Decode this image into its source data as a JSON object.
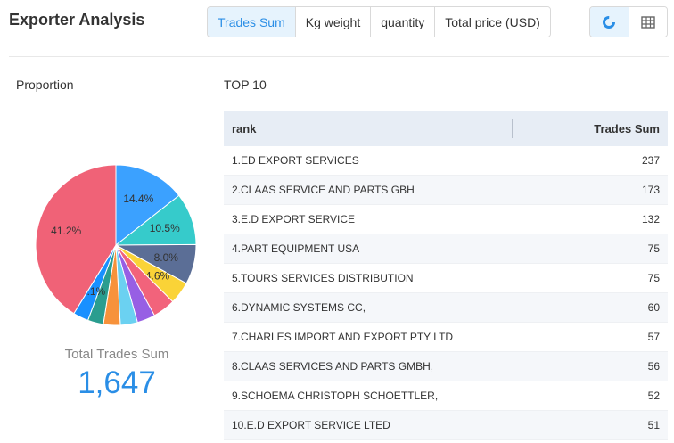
{
  "header": {
    "title": "Exporter Analysis",
    "metric_tabs": [
      "Trades Sum",
      "Kg weight",
      "quantity",
      "Total price (USD)"
    ],
    "active_tab": 0,
    "view_icons": [
      "pie-chart-icon",
      "table-icon"
    ]
  },
  "left": {
    "section_label": "Proportion",
    "total_label": "Total Trades Sum",
    "total_value": "1,647"
  },
  "right": {
    "section_label": "TOP 10",
    "columns": [
      "rank",
      "Trades Sum"
    ],
    "rows": [
      {
        "name": "1.ED EXPORT SERVICES",
        "value": "237"
      },
      {
        "name": "2.CLAAS SERVICE AND PARTS GBH",
        "value": "173"
      },
      {
        "name": "3.E.D EXPORT SERVICE",
        "value": "132"
      },
      {
        "name": "4.PART EQUIPMENT USA",
        "value": "75"
      },
      {
        "name": "5.TOURS SERVICES DISTRIBUTION",
        "value": "75"
      },
      {
        "name": "6.DYNAMIC SYSTEMS CC,",
        "value": "60"
      },
      {
        "name": "7.CHARLES IMPORT AND EXPORT PTY LTD",
        "value": "57"
      },
      {
        "name": "8.CLAAS SERVICES AND PARTS GMBH,",
        "value": "56"
      },
      {
        "name": "9.SCHOEMA CHRISTOPH SCHOETTLER,",
        "value": "52"
      },
      {
        "name": "10.E.D EXPORT SERVICE LTED",
        "value": "51"
      }
    ]
  },
  "colors": {
    "accent": "#2a8ee6",
    "active_tab_bg": "#e6f3fd",
    "table_header_bg": "#e7edf5"
  },
  "chart_data": {
    "type": "pie",
    "slices": [
      {
        "value": 237,
        "label": "14.4%",
        "color": "#3ba1ff"
      },
      {
        "value": 173,
        "label": "10.5%",
        "color": "#36cbcb"
      },
      {
        "value": 132,
        "label": "8.0%",
        "color": "#5b6e96"
      },
      {
        "value": 75,
        "label": "4.6%",
        "color": "#fad337"
      },
      {
        "value": 75,
        "label": "",
        "color": "#f2637b"
      },
      {
        "value": 60,
        "label": "",
        "color": "#975fe4"
      },
      {
        "value": 57,
        "label": "",
        "color": "#6bd1f1"
      },
      {
        "value": 56,
        "label": "",
        "color": "#f7923b"
      },
      {
        "value": 52,
        "label": "",
        "color": "#2a9d8f"
      },
      {
        "value": 51,
        "label": "3.1%",
        "color": "#1890ff"
      },
      {
        "value": 679,
        "label": "41.2%",
        "color": "#f06277"
      }
    ]
  }
}
